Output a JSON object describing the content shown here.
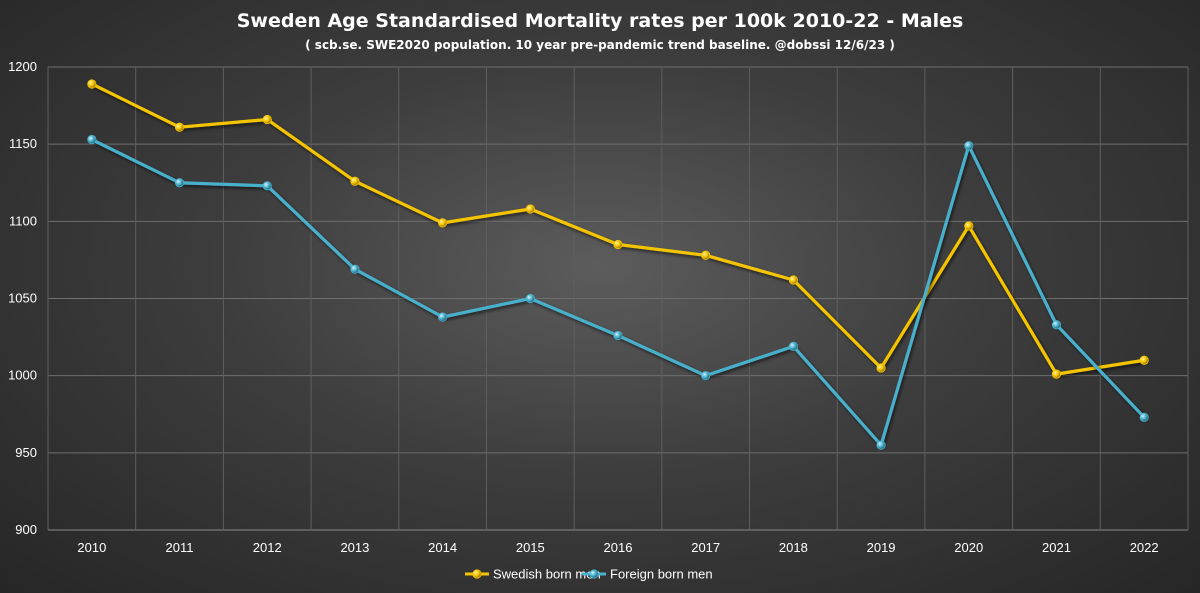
{
  "chart_data": {
    "type": "line",
    "title": "Sweden Age Standardised Mortality rates per 100k 2010-22 - Males",
    "subtitle": "( scb.se. SWE2020 population.  10 year pre-pandemic trend baseline. @dobssi  12/6/23 )",
    "categories": [
      "2010",
      "2011",
      "2012",
      "2013",
      "2014",
      "2015",
      "2016",
      "2017",
      "2018",
      "2019",
      "2020",
      "2021",
      "2022"
    ],
    "ylim": [
      900,
      1200
    ],
    "yticks": [
      900,
      950,
      1000,
      1050,
      1100,
      1150,
      1200
    ],
    "grid": true,
    "legend_position": "bottom-center",
    "series": [
      {
        "name": "Swedish born men",
        "color": "#F5C400",
        "values": [
          1189,
          1161,
          1166,
          1126,
          1099,
          1108,
          1085,
          1078,
          1062,
          1005,
          1097,
          1001,
          1010
        ]
      },
      {
        "name": "Foreign born men",
        "color": "#4AB0CC",
        "values": [
          1153,
          1125,
          1123,
          1069,
          1038,
          1050,
          1026,
          1000,
          1019,
          955,
          1149,
          1033,
          973
        ]
      }
    ]
  }
}
